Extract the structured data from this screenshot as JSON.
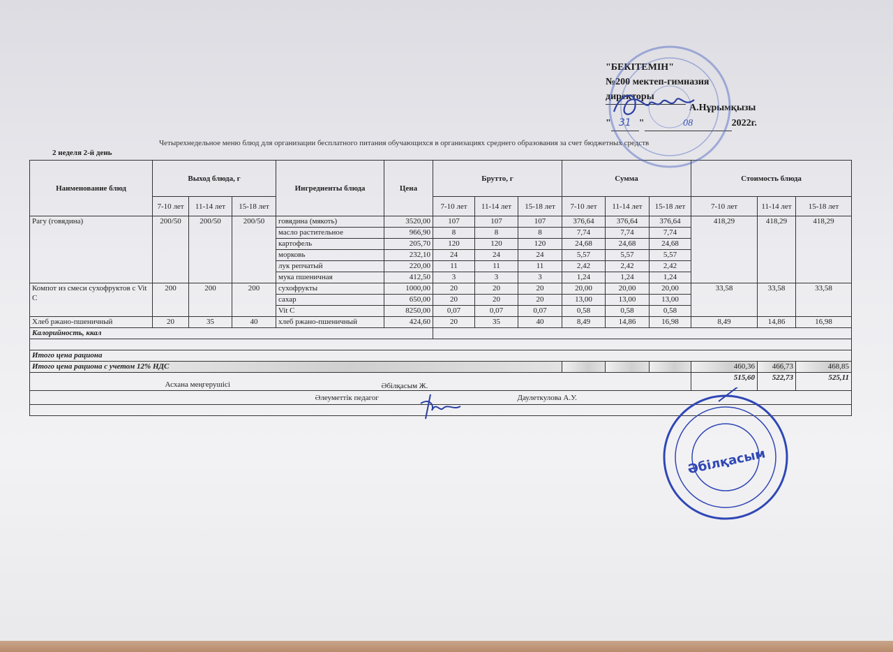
{
  "approval": {
    "line1": "\"БЕКІТЕМІН\"",
    "line2": "№200 мектеп-гимназия",
    "line3": "директоры",
    "name": "А.Нұрымқызы",
    "date_day": "31",
    "date_month": "08",
    "date_year": "2022г."
  },
  "title": "Четырехнедельное меню блюд для организации бесплатного питания обучающихся в организациях среднего образования за счет бюджетных средств",
  "week_label": "2 неделя 2-й день",
  "headers": {
    "name": "Наименование блюд",
    "yield": "Выход блюда, г",
    "ingredients": "Ингредиенты блюда",
    "price": "Цена",
    "brutto": "Брутто, г",
    "sum": "Сумма",
    "cost": "Стоимость блюда",
    "ages": [
      "7-10 лет",
      "11-14 лет",
      "15-18 лет"
    ]
  },
  "dishes": [
    {
      "name": "Рагу (говядина)",
      "yield": [
        "200/50",
        "200/50",
        "200/50"
      ],
      "cost": [
        "418,29",
        "418,29",
        "418,29"
      ],
      "items": [
        {
          "ingredient": "говядина (мякоть)",
          "price": "3520,00",
          "brutto": [
            "107",
            "107",
            "107"
          ],
          "sum": [
            "376,64",
            "376,64",
            "376,64"
          ]
        },
        {
          "ingredient": "масло растительное",
          "price": "966,90",
          "brutto": [
            "8",
            "8",
            "8"
          ],
          "sum": [
            "7,74",
            "7,74",
            "7,74"
          ]
        },
        {
          "ingredient": "картофель",
          "price": "205,70",
          "brutto": [
            "120",
            "120",
            "120"
          ],
          "sum": [
            "24,68",
            "24,68",
            "24,68"
          ]
        },
        {
          "ingredient": "морковь",
          "price": "232,10",
          "brutto": [
            "24",
            "24",
            "24"
          ],
          "sum": [
            "5,57",
            "5,57",
            "5,57"
          ]
        },
        {
          "ingredient": "лук репчатый",
          "price": "220,00",
          "brutto": [
            "11",
            "11",
            "11"
          ],
          "sum": [
            "2,42",
            "2,42",
            "2,42"
          ]
        },
        {
          "ingredient": "мука пшеничная",
          "price": "412,50",
          "brutto": [
            "3",
            "3",
            "3"
          ],
          "sum": [
            "1,24",
            "1,24",
            "1,24"
          ]
        }
      ]
    },
    {
      "name": "Компот из смеси сухофруктов с Vit C",
      "yield": [
        "200",
        "200",
        "200"
      ],
      "cost": [
        "33,58",
        "33,58",
        "33,58"
      ],
      "items": [
        {
          "ingredient": "сухофрукты",
          "price": "1000,00",
          "brutto": [
            "20",
            "20",
            "20"
          ],
          "sum": [
            "20,00",
            "20,00",
            "20,00"
          ]
        },
        {
          "ingredient": "сахар",
          "price": "650,00",
          "brutto": [
            "20",
            "20",
            "20"
          ],
          "sum": [
            "13,00",
            "13,00",
            "13,00"
          ]
        },
        {
          "ingredient": "Vit C",
          "price": "8250,00",
          "brutto": [
            "0,07",
            "0,07",
            "0,07"
          ],
          "sum": [
            "0,58",
            "0,58",
            "0,58"
          ]
        }
      ]
    },
    {
      "name": "Хлеб ржано-пшеничный",
      "yield": [
        "20",
        "35",
        "40"
      ],
      "cost": [
        "8,49",
        "14,86",
        "16,98"
      ],
      "items": [
        {
          "ingredient": "хлеб ржано-пшеничный",
          "price": "424,60",
          "brutto": [
            "20",
            "35",
            "40"
          ],
          "sum": [
            "8,49",
            "14,86",
            "16,98"
          ]
        }
      ]
    }
  ],
  "calories_label": "Калорийность, ккал",
  "total_label": "Итого цена рациона",
  "total_vat_label": "Итого цена рациона с учетом 12% НДС",
  "total": [
    "460,36",
    "466,73",
    "468,85"
  ],
  "total_vat": [
    "515,60",
    "522,73",
    "525,11"
  ],
  "signatures": [
    {
      "role": "Асхана меңгерушісі",
      "name": "Әбілқасым Ж."
    },
    {
      "role": "Әлеуметтік педагог",
      "name": "Даулеткулова А.У."
    }
  ],
  "stamp_colors": {
    "ink": "#3b55b8"
  }
}
